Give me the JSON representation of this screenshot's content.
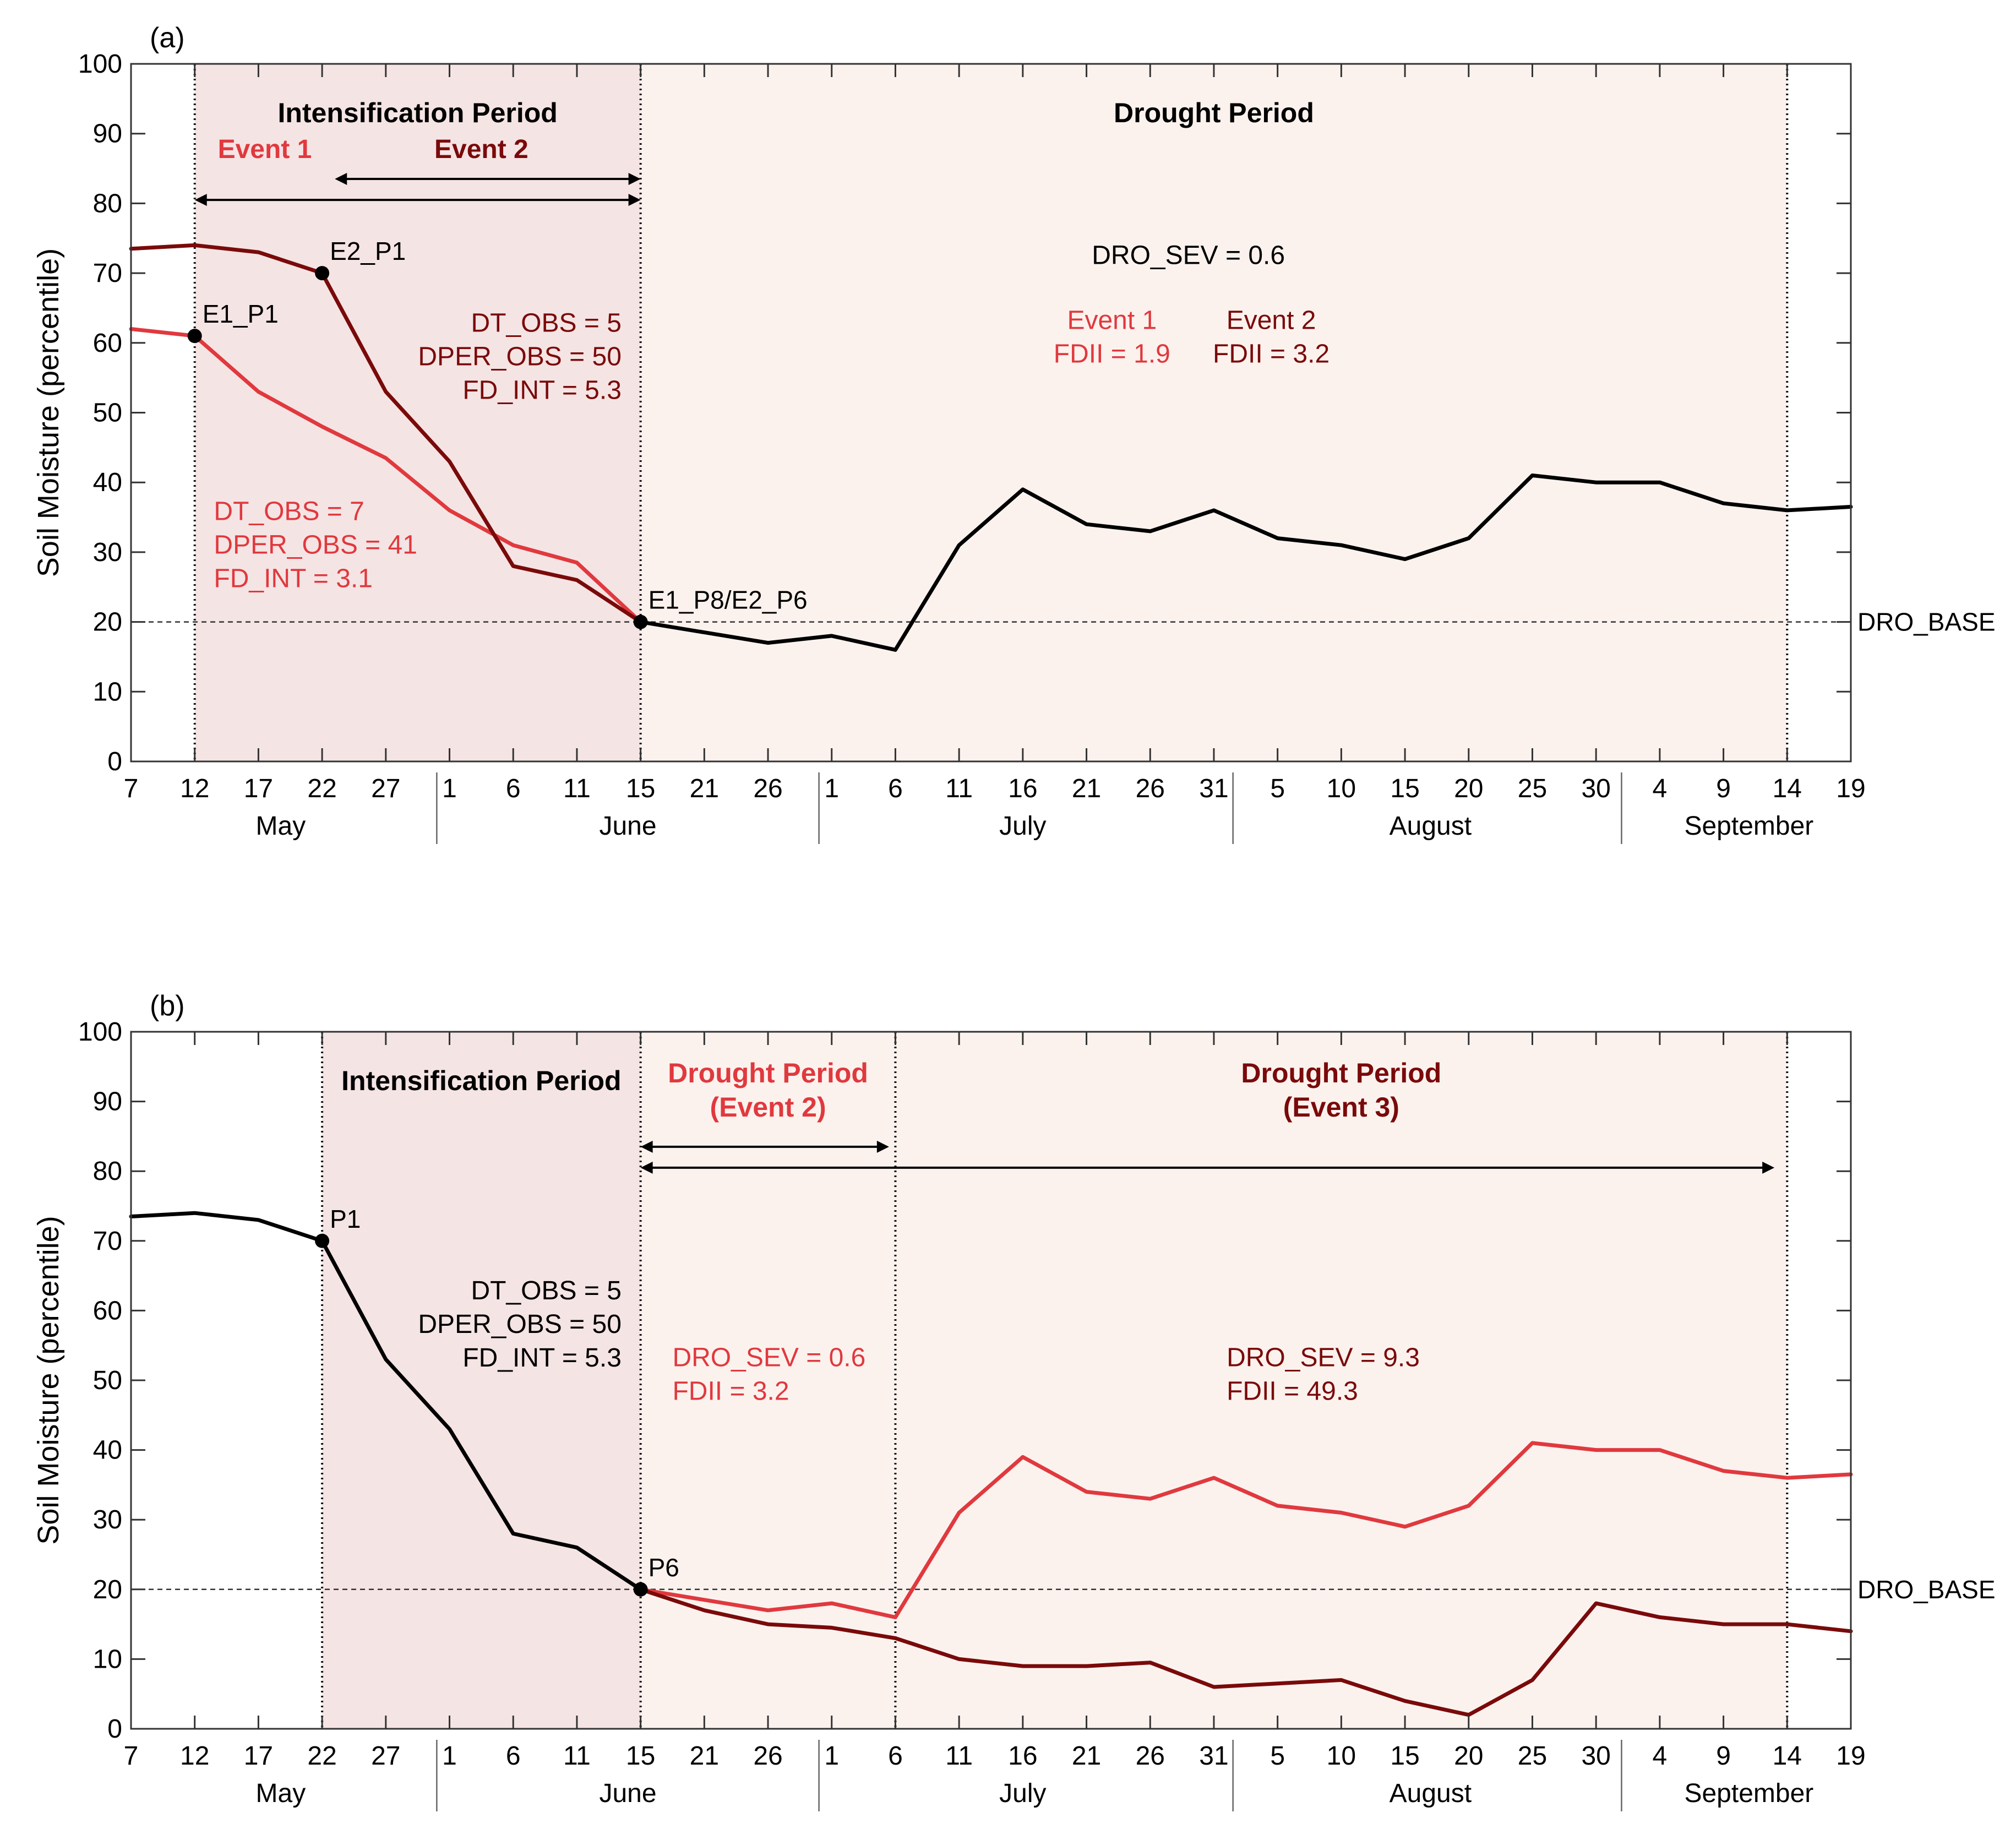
{
  "y_axis_label": "Soil Moisture (percentile)",
  "threshold_label": "DRO_BASE",
  "colors": {
    "event_light": "#e0393e",
    "event_dark": "#7a0a0a",
    "black": "#000000",
    "intensification_fill": "#f5e4e4",
    "drought_fill": "#fbf2ee"
  },
  "chart_data": [
    {
      "type": "line",
      "panel_label": "(a)",
      "ylim": [
        0,
        100
      ],
      "yticks": [
        0,
        10,
        20,
        30,
        40,
        50,
        60,
        70,
        80,
        90,
        100
      ],
      "ylabel": "Soil Moisture (percentile)",
      "threshold": 20,
      "x_index_range": [
        0,
        27
      ],
      "day_ticks": [
        "7",
        "12",
        "17",
        "22",
        "27",
        "1",
        "6",
        "11",
        "15",
        "21",
        "26",
        "1",
        "6",
        "11",
        "16",
        "21",
        "26",
        "31",
        "5",
        "10",
        "15",
        "20",
        "25",
        "30",
        "4",
        "9",
        "14",
        "19"
      ],
      "months": [
        {
          "label": "May",
          "center": 2.35
        },
        {
          "label": "June",
          "center": 7.8
        },
        {
          "label": "July",
          "center": 14.0
        },
        {
          "label": "August",
          "center": 20.4
        },
        {
          "label": "September",
          "center": 25.4
        }
      ],
      "month_separators": [
        4.8,
        10.8,
        17.3,
        23.4
      ],
      "periods": [
        {
          "label": "Intensification Period",
          "start": 1,
          "end": 8,
          "kind": "intensification",
          "color": "black"
        },
        {
          "label": "Drought Period",
          "start": 8,
          "end": 26,
          "kind": "drought",
          "color": "black"
        }
      ],
      "vlines": [
        1,
        8,
        26
      ],
      "series": [
        {
          "name": "Event 1",
          "color": "event_light",
          "x": [
            0,
            1,
            2,
            3,
            4,
            5,
            6,
            7,
            8
          ],
          "y": [
            62,
            61,
            53,
            48,
            43.5,
            36,
            31,
            28.5,
            20
          ]
        },
        {
          "name": "Event 2",
          "color": "event_dark",
          "x": [
            0,
            1,
            2,
            3,
            4,
            5,
            6,
            7,
            8
          ],
          "y": [
            73.5,
            74,
            73,
            70,
            53,
            43,
            28,
            26,
            20
          ]
        },
        {
          "name": "Drought",
          "color": "black",
          "x": [
            8,
            9,
            10,
            11,
            12,
            13,
            14,
            15,
            16,
            17,
            18,
            19,
            20,
            21,
            22,
            23,
            24,
            25,
            26,
            27
          ],
          "y": [
            20,
            18.5,
            17,
            18,
            16,
            31,
            39,
            34,
            33,
            36,
            32,
            31,
            29,
            32,
            41,
            40,
            40,
            37,
            36,
            36.5
          ]
        }
      ],
      "points": [
        {
          "label": "E1_P1",
          "x": 1,
          "y": 61
        },
        {
          "label": "E2_P1",
          "x": 3,
          "y": 70
        },
        {
          "label": "E1_P8/E2_P6",
          "x": 8,
          "y": 20
        }
      ],
      "arrows": [
        {
          "x1": 1,
          "x2": 8,
          "y": 80.5
        },
        {
          "x1": 3.2,
          "x2": 8,
          "y": 83.5
        }
      ],
      "annotations": [
        {
          "lines": [
            "Event 1"
          ],
          "x": 2.1,
          "y": 86.5,
          "color": "event_light",
          "bold": true,
          "anchor": "middle"
        },
        {
          "lines": [
            "Event 2"
          ],
          "x": 5.5,
          "y": 86.5,
          "color": "event_dark",
          "bold": true,
          "anchor": "middle"
        },
        {
          "lines": [
            "DT_OBS = 5",
            "DPER_OBS = 50",
            "FD_INT = 5.3"
          ],
          "x": 7.7,
          "y": 61.6,
          "color": "event_dark",
          "bold": false,
          "anchor": "end"
        },
        {
          "lines": [
            "DT_OBS = 7",
            "DPER_OBS = 41",
            "FD_INT = 3.1"
          ],
          "x": 1.3,
          "y": 34.6,
          "color": "event_light",
          "bold": false,
          "anchor": "start"
        },
        {
          "lines": [
            "DRO_SEV = 0.6"
          ],
          "x": 16.6,
          "y": 71.3,
          "color": "black",
          "bold": false,
          "anchor": "middle"
        },
        {
          "lines": [
            "Event 1",
            "FDII = 1.9"
          ],
          "x": 15.4,
          "y": 62,
          "color": "event_light",
          "bold": false,
          "anchor": "middle"
        },
        {
          "lines": [
            "Event 2",
            "FDII = 3.2"
          ],
          "x": 17.9,
          "y": 62,
          "color": "event_dark",
          "bold": false,
          "anchor": "middle"
        }
      ]
    },
    {
      "type": "line",
      "panel_label": "(b)",
      "ylim": [
        0,
        100
      ],
      "yticks": [
        0,
        10,
        20,
        30,
        40,
        50,
        60,
        70,
        80,
        90,
        100
      ],
      "ylabel": "Soil Moisture (percentile)",
      "threshold": 20,
      "x_index_range": [
        0,
        27
      ],
      "day_ticks": [
        "7",
        "12",
        "17",
        "22",
        "27",
        "1",
        "6",
        "11",
        "15",
        "21",
        "26",
        "1",
        "6",
        "11",
        "16",
        "21",
        "26",
        "31",
        "5",
        "10",
        "15",
        "20",
        "25",
        "30",
        "4",
        "9",
        "14",
        "19"
      ],
      "months": [
        {
          "label": "May",
          "center": 2.35
        },
        {
          "label": "June",
          "center": 7.8
        },
        {
          "label": "July",
          "center": 14.0
        },
        {
          "label": "August",
          "center": 20.4
        },
        {
          "label": "September",
          "center": 25.4
        }
      ],
      "month_separators": [
        4.8,
        10.8,
        17.3,
        23.4
      ],
      "periods": [
        {
          "label": "Intensification Period",
          "start": 3,
          "end": 8,
          "kind": "intensification",
          "color": "black"
        },
        {
          "label": "Drought Period\n(Event 2)",
          "start": 8,
          "end": 12,
          "kind": "drought",
          "color": "event_light"
        },
        {
          "label": "Drought Period\n(Event 3)",
          "start": 12,
          "end": 26,
          "kind": "drought",
          "color": "event_dark"
        }
      ],
      "vlines": [
        3,
        8,
        12,
        26
      ],
      "series": [
        {
          "name": "Intensification",
          "color": "black",
          "x": [
            0,
            1,
            2,
            3,
            4,
            5,
            6,
            7,
            8
          ],
          "y": [
            73.5,
            74,
            73,
            70,
            53,
            43,
            28,
            26,
            20
          ]
        },
        {
          "name": "Event 2",
          "color": "event_light",
          "x": [
            8,
            9,
            10,
            11,
            12,
            13,
            14,
            15,
            16,
            17,
            18,
            19,
            20,
            21,
            22,
            23,
            24,
            25,
            26,
            27
          ],
          "y": [
            20,
            18.5,
            17,
            18,
            16,
            31,
            39,
            34,
            33,
            36,
            32,
            31,
            29,
            32,
            41,
            40,
            40,
            37,
            36,
            36.5
          ]
        },
        {
          "name": "Event 3",
          "color": "event_dark",
          "x": [
            8,
            9,
            10,
            11,
            12,
            13,
            14,
            15,
            16,
            17,
            18,
            19,
            20,
            21,
            22,
            23,
            24,
            25,
            26,
            27
          ],
          "y": [
            20,
            17,
            15,
            14.5,
            13,
            10,
            9,
            9,
            9.5,
            6,
            6.5,
            7,
            4,
            2,
            7,
            18,
            16,
            15,
            15,
            14
          ]
        }
      ],
      "points": [
        {
          "label": "P1",
          "x": 3,
          "y": 70
        },
        {
          "label": "P6",
          "x": 8,
          "y": 20
        }
      ],
      "arrows": [
        {
          "x1": 8,
          "x2": 11.9,
          "y": 83.5
        },
        {
          "x1": 8,
          "x2": 25.8,
          "y": 80.5
        }
      ],
      "annotations": [
        {
          "lines": [
            "DT_OBS = 5",
            "DPER_OBS = 50",
            "FD_INT = 5.3"
          ],
          "x": 7.7,
          "y": 61.6,
          "color": "black",
          "bold": false,
          "anchor": "end"
        },
        {
          "lines": [
            "DRO_SEV = 0.6",
            "FDII = 3.2"
          ],
          "x": 8.5,
          "y": 52,
          "color": "event_light",
          "bold": false,
          "anchor": "start"
        },
        {
          "lines": [
            "DRO_SEV = 9.3",
            "FDII = 49.3"
          ],
          "x": 17.2,
          "y": 52,
          "color": "event_dark",
          "bold": false,
          "anchor": "start"
        }
      ]
    }
  ]
}
